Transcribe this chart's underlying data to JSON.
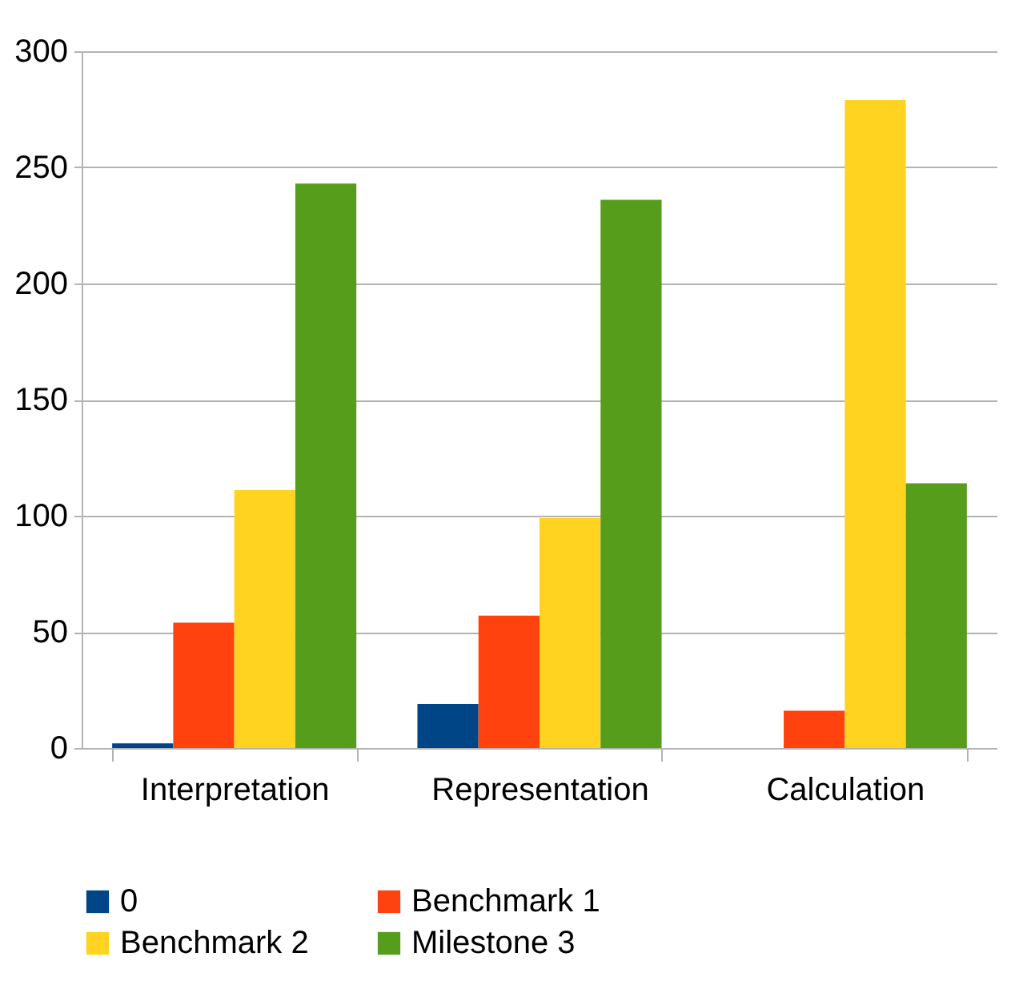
{
  "chart_data": {
    "type": "bar",
    "categories": [
      "Interpretation",
      "Representation",
      "Calculation"
    ],
    "series": [
      {
        "name": "0",
        "color": "#004586",
        "values": [
          2,
          19,
          0
        ]
      },
      {
        "name": "Benchmark 1",
        "color": "#ff420e",
        "values": [
          54,
          57,
          16
        ]
      },
      {
        "name": "Benchmark 2",
        "color": "#ffd320",
        "values": [
          111,
          99,
          279
        ]
      },
      {
        "name": "Milestone 3",
        "color": "#579d1c",
        "values": [
          243,
          236,
          114
        ]
      }
    ],
    "ylim": [
      0,
      300
    ],
    "yticks": [
      0,
      50,
      100,
      150,
      200,
      250,
      300
    ],
    "grid": "y",
    "legend": "bottom"
  }
}
